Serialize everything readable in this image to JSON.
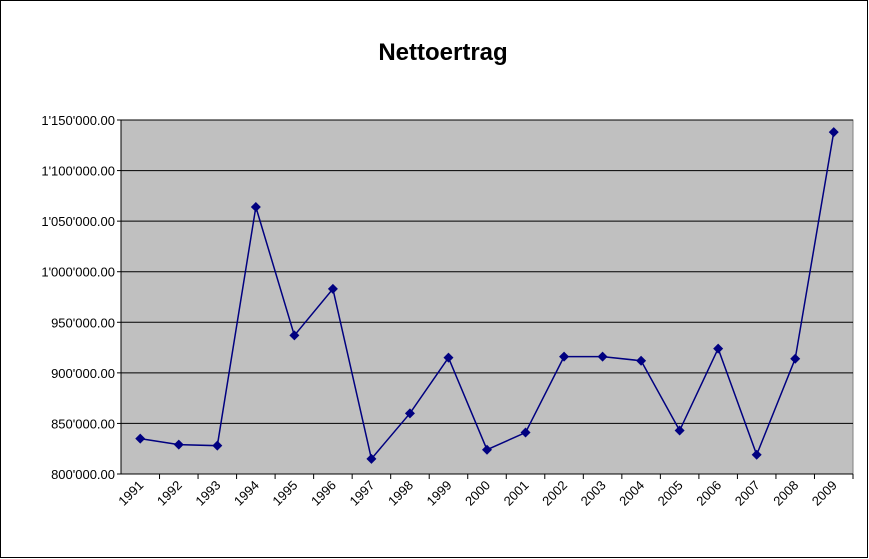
{
  "chart_data": {
    "type": "line",
    "title": "Nettoertrag",
    "categories": [
      "1991",
      "1992",
      "1993",
      "1994",
      "1995",
      "1996",
      "1997",
      "1998",
      "1999",
      "2000",
      "2001",
      "2002",
      "2003",
      "2004",
      "2005",
      "2006",
      "2007",
      "2008",
      "2009"
    ],
    "series": [
      {
        "name": "Nettoertrag",
        "color": "#000080",
        "values": [
          835000,
          829000,
          828000,
          1064000,
          937000,
          983000,
          815000,
          860000,
          915000,
          824000,
          841000,
          916000,
          916000,
          912000,
          843000,
          924000,
          819000,
          914000,
          1138000
        ]
      }
    ],
    "ylim": [
      800000,
      1150000
    ],
    "yticks": [
      {
        "value": 800000,
        "label": "800'000.00"
      },
      {
        "value": 850000,
        "label": "850'000.00"
      },
      {
        "value": 900000,
        "label": "900'000.00"
      },
      {
        "value": 950000,
        "label": "950'000.00"
      },
      {
        "value": 1000000,
        "label": "1'000'000.00"
      },
      {
        "value": 1050000,
        "label": "1'050'000.00"
      },
      {
        "value": 1100000,
        "label": "1'100'000.00"
      },
      {
        "value": 1150000,
        "label": "1'150'000.00"
      }
    ],
    "grid": true
  }
}
